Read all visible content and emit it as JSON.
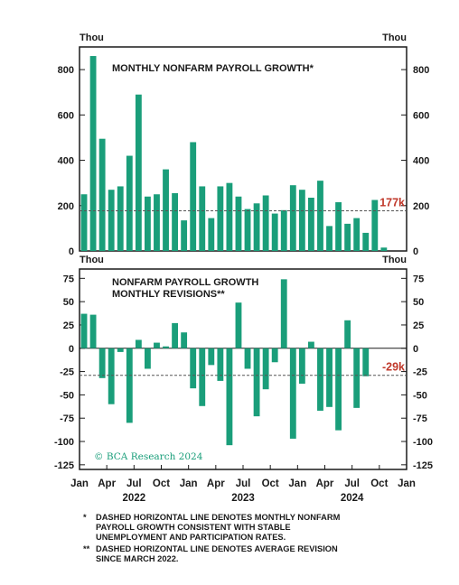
{
  "colors": {
    "bar": "#1a9e7a",
    "annotation": "#c0392b",
    "axis": "#1a1a1a"
  },
  "chart_data": [
    {
      "type": "bar",
      "title": "MONTHLY NONFARM PAYROLL GROWTH*",
      "unit_left": "Thou",
      "unit_right": "Thou",
      "ylim": [
        0,
        900
      ],
      "yticks": [
        0,
        200,
        400,
        600,
        800
      ],
      "x": [
        "Jan 2022",
        "Feb 2022",
        "Mar 2022",
        "Apr 2022",
        "May 2022",
        "Jun 2022",
        "Jul 2022",
        "Aug 2022",
        "Sep 2022",
        "Oct 2022",
        "Nov 2022",
        "Dec 2022",
        "Jan 2023",
        "Feb 2023",
        "Mar 2023",
        "Apr 2023",
        "May 2023",
        "Jun 2023",
        "Jul 2023",
        "Aug 2023",
        "Sep 2023",
        "Oct 2023",
        "Nov 2023",
        "Dec 2023",
        "Jan 2024",
        "Feb 2024",
        "Mar 2024",
        "Apr 2024",
        "May 2024",
        "Jun 2024",
        "Jul 2024",
        "Aug 2024",
        "Sep 2024",
        "Oct 2024",
        "Nov 2024",
        "Dec 2024"
      ],
      "values": [
        250,
        860,
        495,
        270,
        285,
        420,
        690,
        240,
        250,
        360,
        255,
        135,
        480,
        285,
        145,
        285,
        300,
        240,
        185,
        210,
        245,
        165,
        180,
        290,
        270,
        235,
        310,
        110,
        215,
        120,
        145,
        80,
        225,
        15,
        null,
        null
      ],
      "reference_line": {
        "value": 177,
        "label": "177k"
      }
    },
    {
      "type": "bar",
      "title": "NONFARM PAYROLL GROWTH MONTHLY REVISIONS**",
      "title_lines": [
        "NONFARM PAYROLL GROWTH",
        "MONTHLY REVISIONS**"
      ],
      "unit_left": "Thou",
      "unit_right": "Thou",
      "ylim": [
        -130,
        85
      ],
      "yticks": [
        -125,
        -100,
        -75,
        -50,
        -25,
        0,
        25,
        50,
        75
      ],
      "x": [
        "Jan 2022",
        "Feb 2022",
        "Mar 2022",
        "Apr 2022",
        "May 2022",
        "Jun 2022",
        "Jul 2022",
        "Aug 2022",
        "Sep 2022",
        "Oct 2022",
        "Nov 2022",
        "Dec 2022",
        "Jan 2023",
        "Feb 2023",
        "Mar 2023",
        "Apr 2023",
        "May 2023",
        "Jun 2023",
        "Jul 2023",
        "Aug 2023",
        "Sep 2023",
        "Oct 2023",
        "Nov 2023",
        "Dec 2023",
        "Jan 2024",
        "Feb 2024",
        "Mar 2024",
        "Apr 2024",
        "May 2024",
        "Jun 2024",
        "Jul 2024",
        "Aug 2024",
        "Sep 2024",
        "Oct 2024",
        "Nov 2024",
        "Dec 2024"
      ],
      "values": [
        37,
        36,
        -32,
        -60,
        -4,
        -80,
        9,
        -22,
        6,
        2,
        27,
        17,
        -43,
        -62,
        -18,
        -35,
        -104,
        49,
        -22,
        -73,
        -44,
        -15,
        74,
        -97,
        -38,
        7,
        -67,
        -63,
        -88,
        30,
        -64,
        -30,
        null,
        null,
        null,
        null
      ],
      "reference_line": {
        "value": -29,
        "label": "-29k"
      },
      "watermark": "© BCA Research 2024"
    }
  ],
  "x_axis": {
    "month_labels": [
      "Jan",
      "Apr",
      "Jul",
      "Oct",
      "Jan",
      "Apr",
      "Jul",
      "Oct",
      "Jan",
      "Apr",
      "Jul",
      "Oct",
      "Jan"
    ],
    "years": [
      "2022",
      "2023",
      "2024"
    ]
  },
  "footnotes": {
    "note1_mark": "*",
    "note1_line1": "DASHED HORIZONTAL LINE DENOTES MONTHLY NONFARM",
    "note1_line2": "PAYROLL GROWTH CONSISTENT WITH STABLE",
    "note1_line3": "UNEMPLOYMENT AND PARTICIPATION RATES.",
    "note2_mark": "**",
    "note2_line1": "DASHED HORIZONTAL LINE DENOTES AVERAGE REVISION",
    "note2_line2": "SINCE MARCH 2022."
  }
}
